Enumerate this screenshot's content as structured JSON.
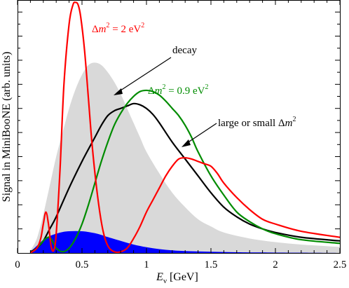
{
  "chart_data": {
    "type": "line",
    "xlabel_main": "E",
    "xlabel_sub": "ν",
    "xlabel_unit": " [GeV]",
    "ylabel": "Signal in MiniBooNE  (arb. units)",
    "xlim": [
      0,
      2.5
    ],
    "ylim": [
      0,
      1.05
    ],
    "xticks": [
      0,
      0.5,
      1,
      1.5,
      2,
      2.5
    ],
    "xtick_labels": [
      "0",
      "0.5",
      "1",
      "1.5",
      "2",
      "2.5"
    ],
    "grid": false,
    "annotations": {
      "dm2_2": {
        "delta": "Δ",
        "m": "m",
        "sup": "2",
        "rest": " = 2 eV",
        "sup2": "2"
      },
      "decay": "decay",
      "dm2_09": {
        "delta": "Δ",
        "m": "m",
        "sup": "2",
        "rest": " = 0.9 eV",
        "sup2": "2"
      },
      "large_small": {
        "text": "large or small Δ",
        "m": "m",
        "sup": "2"
      }
    },
    "series": [
      {
        "role": "decay-shaded",
        "color": "#d9d9d9",
        "x": [
          0.1,
          0.15,
          0.2,
          0.25,
          0.3,
          0.35,
          0.4,
          0.45,
          0.5,
          0.55,
          0.6,
          0.65,
          0.7,
          0.75,
          0.8,
          0.85,
          0.9,
          0.95,
          1.0,
          1.1,
          1.2,
          1.3,
          1.4,
          1.5,
          1.6,
          1.8,
          2.0,
          2.2,
          2.5
        ],
        "y": [
          0.01,
          0.06,
          0.16,
          0.28,
          0.4,
          0.5,
          0.6,
          0.68,
          0.74,
          0.78,
          0.79,
          0.78,
          0.75,
          0.71,
          0.66,
          0.6,
          0.54,
          0.48,
          0.42,
          0.33,
          0.25,
          0.19,
          0.14,
          0.11,
          0.085,
          0.06,
          0.045,
          0.035,
          0.025
        ]
      },
      {
        "role": "small-blue",
        "color": "#0000ff",
        "x": [
          0.1,
          0.15,
          0.2,
          0.25,
          0.3,
          0.35,
          0.4,
          0.45,
          0.5,
          0.55,
          0.6,
          0.65,
          0.7,
          0.8,
          0.9,
          1.0,
          1.1,
          1.2,
          1.3,
          1.5,
          1.7,
          1.9,
          2.2,
          2.5
        ],
        "y": [
          0.005,
          0.03,
          0.055,
          0.07,
          0.08,
          0.087,
          0.09,
          0.091,
          0.09,
          0.087,
          0.082,
          0.075,
          0.066,
          0.05,
          0.035,
          0.024,
          0.016,
          0.011,
          0.008,
          0.005,
          0.003,
          0.002,
          0.001,
          0.0
        ]
      },
      {
        "role": "large-or-small",
        "color": "#000000",
        "x": [
          0.1,
          0.15,
          0.2,
          0.25,
          0.3,
          0.4,
          0.5,
          0.6,
          0.65,
          0.7,
          0.75,
          0.8,
          0.85,
          0.9,
          0.95,
          1.0,
          1.05,
          1.1,
          1.2,
          1.3,
          1.4,
          1.5,
          1.6,
          1.7,
          1.8,
          1.9,
          2.0,
          2.2,
          2.5
        ],
        "y": [
          0.005,
          0.02,
          0.05,
          0.1,
          0.15,
          0.27,
          0.38,
          0.48,
          0.53,
          0.57,
          0.59,
          0.6,
          0.61,
          0.62,
          0.615,
          0.6,
          0.575,
          0.54,
          0.46,
          0.39,
          0.32,
          0.25,
          0.19,
          0.15,
          0.12,
          0.1,
          0.085,
          0.065,
          0.05
        ]
      },
      {
        "role": "dm2-0.9",
        "color": "#008c00",
        "x": [
          0.1,
          0.15,
          0.2,
          0.22,
          0.25,
          0.28,
          0.3,
          0.35,
          0.4,
          0.45,
          0.5,
          0.55,
          0.6,
          0.65,
          0.7,
          0.75,
          0.8,
          0.85,
          0.9,
          0.95,
          1.0,
          1.05,
          1.1,
          1.15,
          1.2,
          1.25,
          1.3,
          1.35,
          1.4,
          1.5,
          1.6,
          1.7,
          1.8,
          1.9,
          2.0,
          2.2,
          2.5
        ],
        "y": [
          0.0,
          0.02,
          0.05,
          0.06,
          0.065,
          0.04,
          0.02,
          0.005,
          0.02,
          0.06,
          0.12,
          0.2,
          0.29,
          0.38,
          0.46,
          0.53,
          0.58,
          0.62,
          0.65,
          0.67,
          0.675,
          0.67,
          0.655,
          0.63,
          0.6,
          0.57,
          0.53,
          0.48,
          0.42,
          0.32,
          0.24,
          0.17,
          0.13,
          0.1,
          0.08,
          0.055,
          0.04
        ]
      },
      {
        "role": "dm2-2",
        "color": "#ff0000",
        "x": [
          0.1,
          0.15,
          0.18,
          0.2,
          0.22,
          0.24,
          0.26,
          0.28,
          0.3,
          0.33,
          0.36,
          0.4,
          0.43,
          0.45,
          0.47,
          0.49,
          0.52,
          0.55,
          0.58,
          0.62,
          0.66,
          0.7,
          0.75,
          0.8,
          0.85,
          0.9,
          0.95,
          1.0,
          1.05,
          1.1,
          1.15,
          1.2,
          1.25,
          1.3,
          1.35,
          1.4,
          1.45,
          1.5,
          1.55,
          1.6,
          1.7,
          1.8,
          1.9,
          2.0,
          2.2,
          2.5
        ],
        "y": [
          0.0,
          0.02,
          0.06,
          0.12,
          0.17,
          0.12,
          0.03,
          0.01,
          0.08,
          0.35,
          0.7,
          0.95,
          1.03,
          1.04,
          1.03,
          0.98,
          0.84,
          0.64,
          0.44,
          0.24,
          0.1,
          0.03,
          0.005,
          0.005,
          0.02,
          0.06,
          0.11,
          0.17,
          0.22,
          0.27,
          0.32,
          0.36,
          0.39,
          0.395,
          0.39,
          0.38,
          0.37,
          0.36,
          0.33,
          0.29,
          0.23,
          0.18,
          0.14,
          0.12,
          0.09,
          0.065
        ]
      }
    ]
  }
}
